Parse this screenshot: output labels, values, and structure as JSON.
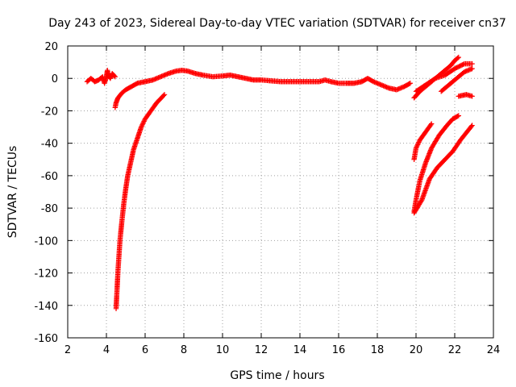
{
  "chart_data": {
    "type": "scatter",
    "title": "Day 243 of 2023, Sidereal Day-to-day VTEC variation (SDTVAR) for receiver cn37",
    "xlabel": "GPS time / hours",
    "ylabel": "SDTVAR / TECUs",
    "xlim": [
      2,
      24
    ],
    "ylim": [
      -160,
      20
    ],
    "xticks": [
      "2",
      "4",
      "6",
      "8",
      "10",
      "12",
      "14",
      "16",
      "18",
      "20",
      "22",
      "24"
    ],
    "yticks": [
      "20",
      "0",
      "-20",
      "-40",
      "-60",
      "-80",
      "-100",
      "-120",
      "-140",
      "-160"
    ],
    "grid": true,
    "marker": "plus",
    "color": "#ff0000",
    "series": [
      {
        "name": "early-arc",
        "points": [
          [
            3.0,
            -2
          ],
          [
            3.2,
            0
          ],
          [
            3.4,
            -2
          ],
          [
            3.6,
            -1
          ],
          [
            3.8,
            1
          ],
          [
            3.9,
            -3
          ],
          [
            4.0,
            1
          ],
          [
            4.05,
            5
          ],
          [
            4.1,
            2
          ],
          [
            4.2,
            0
          ],
          [
            4.3,
            3
          ],
          [
            4.45,
            1
          ]
        ]
      },
      {
        "name": "main-arc",
        "points": [
          [
            4.45,
            -18
          ],
          [
            4.5,
            -15
          ],
          [
            4.6,
            -12
          ],
          [
            4.8,
            -9
          ],
          [
            5.0,
            -7
          ],
          [
            5.3,
            -5
          ],
          [
            5.6,
            -3
          ],
          [
            6.0,
            -2
          ],
          [
            6.4,
            -1
          ],
          [
            6.8,
            1
          ],
          [
            7.2,
            3
          ],
          [
            7.6,
            4.5
          ],
          [
            7.9,
            5
          ],
          [
            8.2,
            4.5
          ],
          [
            8.6,
            3
          ],
          [
            9.0,
            2
          ],
          [
            9.5,
            1
          ],
          [
            10.0,
            1.5
          ],
          [
            10.4,
            2
          ],
          [
            10.8,
            1
          ],
          [
            11.2,
            0
          ],
          [
            11.6,
            -1
          ],
          [
            12.0,
            -1
          ],
          [
            12.5,
            -1.5
          ],
          [
            13.0,
            -2
          ],
          [
            13.5,
            -2
          ],
          [
            14.0,
            -2
          ],
          [
            14.5,
            -2
          ],
          [
            15.0,
            -2
          ],
          [
            15.3,
            -1
          ],
          [
            15.6,
            -2
          ],
          [
            16.0,
            -3
          ],
          [
            16.4,
            -3
          ],
          [
            16.8,
            -3
          ],
          [
            17.2,
            -2
          ],
          [
            17.5,
            0
          ],
          [
            17.8,
            -2
          ],
          [
            18.2,
            -4
          ],
          [
            18.6,
            -6
          ],
          [
            19.0,
            -7
          ],
          [
            19.4,
            -5
          ],
          [
            19.7,
            -3
          ]
        ]
      },
      {
        "name": "morning-rise",
        "points": [
          [
            4.5,
            -142
          ],
          [
            4.55,
            -130
          ],
          [
            4.6,
            -118
          ],
          [
            4.7,
            -100
          ],
          [
            4.8,
            -88
          ],
          [
            4.9,
            -77
          ],
          [
            5.0,
            -68
          ],
          [
            5.1,
            -60
          ],
          [
            5.25,
            -52
          ],
          [
            5.4,
            -44
          ],
          [
            5.6,
            -37
          ],
          [
            5.8,
            -30
          ],
          [
            6.0,
            -25
          ],
          [
            6.3,
            -20
          ],
          [
            6.6,
            -15
          ],
          [
            7.0,
            -10
          ]
        ]
      },
      {
        "name": "late-upper-1",
        "points": [
          [
            19.9,
            -12
          ],
          [
            20.2,
            -8
          ],
          [
            20.6,
            -4
          ],
          [
            21.0,
            0
          ],
          [
            21.4,
            4
          ],
          [
            21.8,
            8
          ],
          [
            22.0,
            11
          ],
          [
            22.2,
            13
          ]
        ]
      },
      {
        "name": "late-upper-2",
        "points": [
          [
            20.0,
            -8
          ],
          [
            20.5,
            -4
          ],
          [
            21.0,
            0
          ],
          [
            21.5,
            2
          ],
          [
            22.0,
            6
          ],
          [
            22.5,
            9
          ],
          [
            22.9,
            9
          ]
        ]
      },
      {
        "name": "late-upper-3",
        "points": [
          [
            21.3,
            -8
          ],
          [
            21.7,
            -4
          ],
          [
            22.1,
            0
          ],
          [
            22.5,
            4
          ],
          [
            22.9,
            6
          ]
        ]
      },
      {
        "name": "late-upper-4",
        "points": [
          [
            22.2,
            -11
          ],
          [
            22.6,
            -10
          ],
          [
            22.9,
            -11
          ]
        ]
      },
      {
        "name": "late-lower-1",
        "points": [
          [
            19.9,
            -50
          ],
          [
            20.0,
            -43
          ],
          [
            20.2,
            -38
          ],
          [
            20.5,
            -33
          ],
          [
            20.8,
            -28
          ]
        ]
      },
      {
        "name": "late-lower-2",
        "points": [
          [
            19.9,
            -82
          ],
          [
            20.0,
            -75
          ],
          [
            20.2,
            -63
          ],
          [
            20.5,
            -52
          ],
          [
            20.8,
            -43
          ],
          [
            21.2,
            -35
          ],
          [
            21.6,
            -29
          ],
          [
            21.9,
            -25
          ],
          [
            22.2,
            -23
          ]
        ]
      },
      {
        "name": "late-lower-3",
        "points": [
          [
            19.9,
            -83
          ],
          [
            20.3,
            -75
          ],
          [
            20.7,
            -62
          ],
          [
            21.1,
            -55
          ],
          [
            21.5,
            -50
          ],
          [
            21.9,
            -45
          ],
          [
            22.3,
            -38
          ],
          [
            22.9,
            -29
          ]
        ]
      }
    ]
  }
}
